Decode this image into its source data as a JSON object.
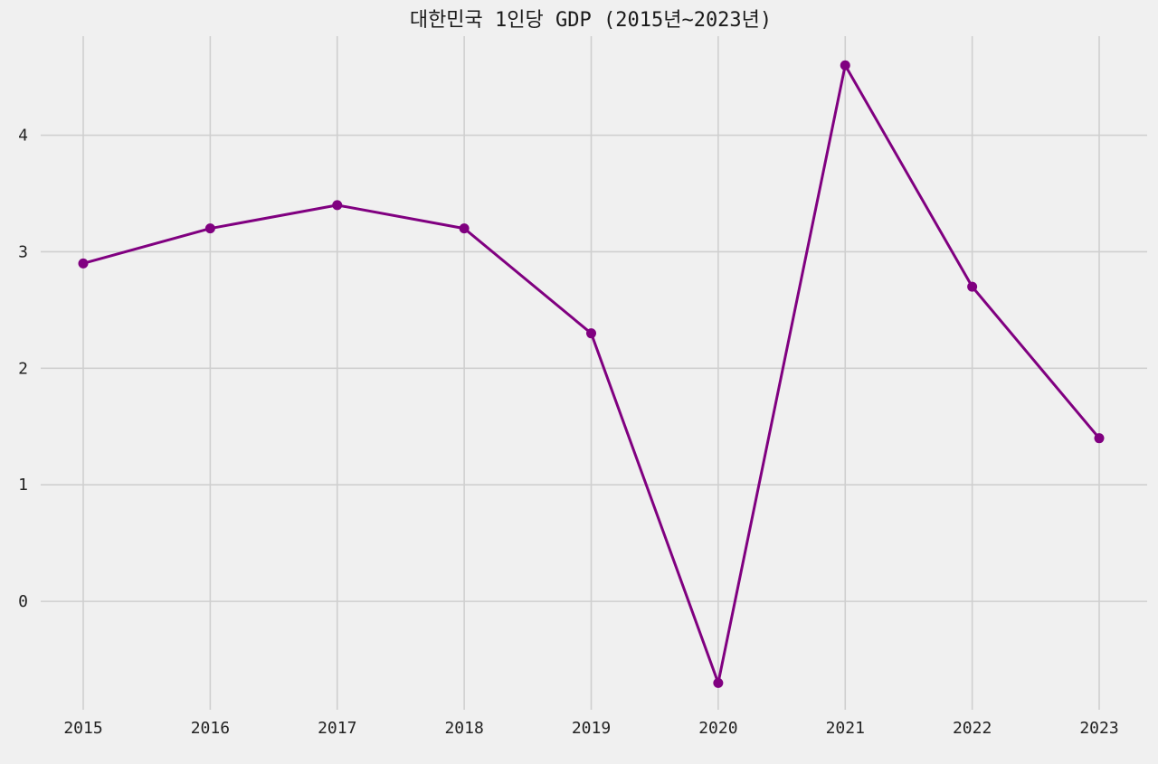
{
  "chart_data": {
    "type": "line",
    "title": "대한민국 1인당 GDP (2015년~2023년)",
    "xlabel": "",
    "ylabel": "",
    "x": [
      "2015",
      "2016",
      "2017",
      "2018",
      "2019",
      "2020",
      "2021",
      "2022",
      "2023"
    ],
    "series": [
      {
        "values": [
          2.9,
          3.2,
          3.4,
          3.2,
          2.3,
          -0.7,
          4.6,
          2.7,
          1.4
        ],
        "color": "#800080",
        "marker": "circle"
      }
    ],
    "yticks": [
      "0",
      "1",
      "2",
      "3",
      "4"
    ],
    "ylim": [
      -0.93,
      4.85
    ],
    "grid": true,
    "background": "#f0f0f0"
  }
}
